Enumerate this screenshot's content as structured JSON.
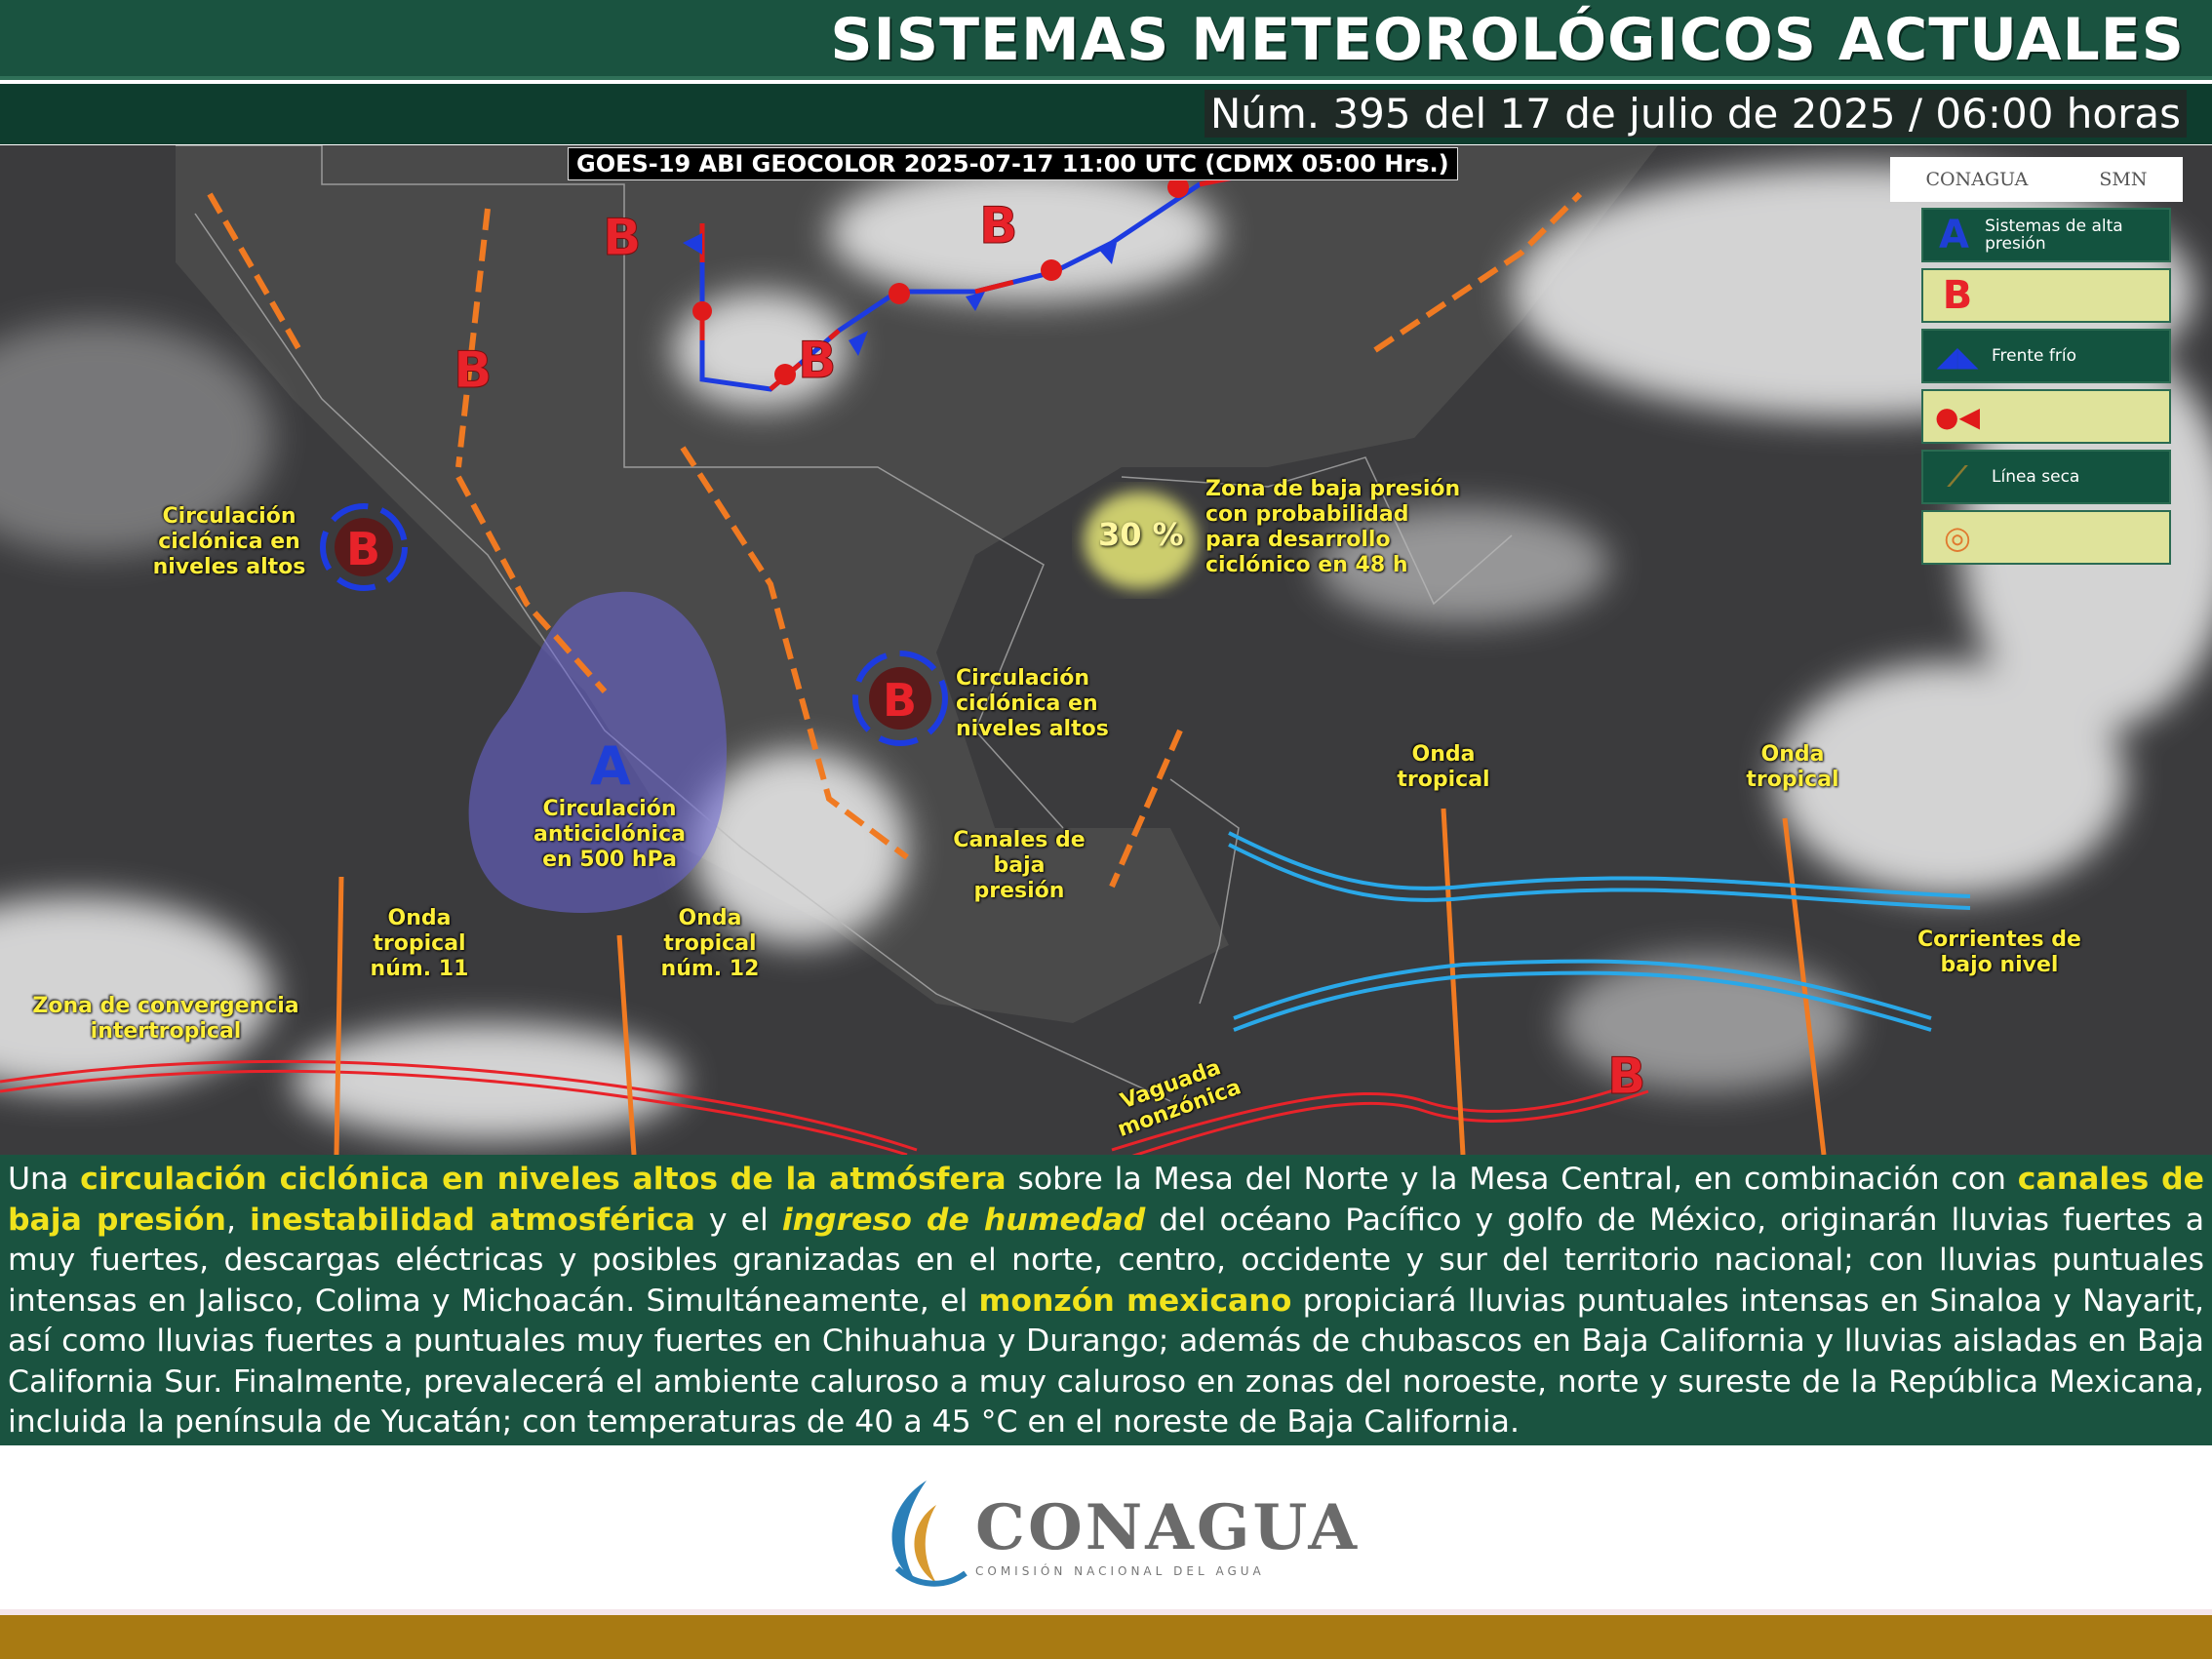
{
  "header": {
    "title": "SISTEMAS METEOROLÓGICOS ACTUALES",
    "subtitle": "Núm. 395 del 17 de julio de 2025 / 06:00 horas"
  },
  "map": {
    "satellite_caption": "GOES-19 ABI GEOCOLOR 2025-07-17 11:00 UTC (CDMX  05:00 Hrs.)",
    "pressure_symbols": {
      "low": "B",
      "high": "A"
    },
    "labels": {
      "ccna_west": "Circulación ciclónica en niveles altos",
      "ccna_center": "Circulación ciclónica en niveles altos",
      "anticyclone": "Circulación anticiclónica en 500 hPa",
      "low_zone": "Zona de baja presión con probabilidad para desarrollo ciclónico en 48 h",
      "low_zone_prob": "30 %",
      "wave11": "Onda tropical núm. 11",
      "wave12": "Onda tropical núm. 12",
      "itcz": "Zona de convergencia intertropical",
      "channels": "Canales de baja presión",
      "wave_a": "Onda tropical",
      "wave_b": "Onda tropical",
      "currents": "Corrientes de bajo nivel",
      "monsoon": "Vaguada monzónica"
    },
    "colors": {
      "low": "#e8232a",
      "high": "#1f3fd6",
      "trough": "#f07a22",
      "cold_front": "#1d3be0",
      "warm_front": "#e01a1a",
      "currents": "#2aa8e8",
      "text_labels": "#ffef3a"
    }
  },
  "legend": {
    "logos": [
      "CONAGUA",
      "SMN"
    ],
    "items": [
      {
        "icon": "A",
        "label": "Sistemas de alta presión"
      },
      {
        "icon": "B",
        "label": ""
      },
      {
        "icon": "cold-front",
        "label": "Frente frío"
      },
      {
        "icon": "stationary-front",
        "label": ""
      },
      {
        "icon": "dry-line",
        "label": "Línea seca"
      },
      {
        "icon": "tropical-cyclone",
        "label": ""
      }
    ]
  },
  "bulletin": [
    {
      "t": "Una ",
      "s": ""
    },
    {
      "t": "circulación ciclónica en niveles altos de la atmósfera",
      "s": "hl"
    },
    {
      "t": " sobre la Mesa del Norte y la Mesa Central, en combinación con ",
      "s": ""
    },
    {
      "t": "canales de baja presión",
      "s": "hl"
    },
    {
      "t": ", ",
      "s": ""
    },
    {
      "t": "inestabilidad atmosférica",
      "s": "hl"
    },
    {
      "t": " y el ",
      "s": ""
    },
    {
      "t": "ingreso de humedad",
      "s": "hl it"
    },
    {
      "t": " del océano Pacífico y golfo de México, originarán lluvias fuertes a muy fuertes, descargas eléctricas y posibles granizadas en el norte, centro, occidente y sur del territorio nacional; con lluvias puntuales intensas en Jalisco, Colima y Michoacán. Simultáneamente, el ",
      "s": ""
    },
    {
      "t": "monzón mexicano",
      "s": "hl"
    },
    {
      "t": " propiciará lluvias puntuales intensas en Sinaloa y Nayarit, así como lluvias fuertes a puntuales muy fuertes en Chihuahua y Durango; además de chubascos en Baja California y lluvias aisladas en Baja California Sur. Finalmente, prevalecerá el ambiente caluroso a muy caluroso en zonas del noroeste, norte y sureste de la República Mexicana, incluida la península de Yucatán; con temperaturas de 40 a 45 °C en el noreste de Baja California.",
      "s": ""
    }
  ],
  "footer": {
    "logo_name": "CONAGUA",
    "logo_sub": "COMISIÓN NACIONAL DEL AGUA"
  }
}
